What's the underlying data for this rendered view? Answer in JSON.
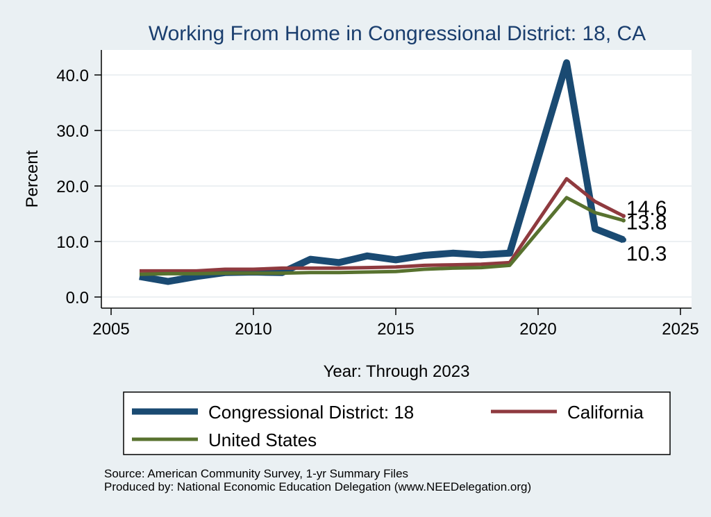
{
  "chart_data": {
    "type": "line",
    "title": "Working From Home in Congressional District: 18, CA",
    "xlabel": "Year: Through 2023",
    "ylabel": "Percent",
    "xlim": [
      2005,
      2025
    ],
    "ylim": [
      0,
      42
    ],
    "xticks": [
      "2005",
      "2010",
      "2015",
      "2020",
      "2025"
    ],
    "yticks": [
      "0.0",
      "10.0",
      "20.0",
      "30.0",
      "40.0"
    ],
    "grid": true,
    "legend_position": "bottom",
    "x": [
      2006,
      2007,
      2008,
      2009,
      2010,
      2011,
      2012,
      2013,
      2014,
      2015,
      2016,
      2017,
      2018,
      2019,
      2021,
      2022,
      2023
    ],
    "series": [
      {
        "name": "Congressional District: 18",
        "color": "#1a4a72",
        "values": [
          3.7,
          2.8,
          3.7,
          4.4,
          4.5,
          4.4,
          6.8,
          6.2,
          7.4,
          6.7,
          7.5,
          7.9,
          7.6,
          7.9,
          42.2,
          12.3,
          10.3
        ]
      },
      {
        "name": "California",
        "color": "#8f3a3f",
        "values": [
          4.7,
          4.7,
          4.7,
          5.0,
          5.0,
          5.2,
          5.2,
          5.2,
          5.3,
          5.4,
          5.7,
          5.8,
          5.9,
          6.2,
          21.3,
          17.2,
          14.6
        ]
      },
      {
        "name": "United States",
        "color": "#58722f",
        "values": [
          4.1,
          4.2,
          4.2,
          4.3,
          4.3,
          4.3,
          4.4,
          4.4,
          4.5,
          4.6,
          5.0,
          5.2,
          5.3,
          5.7,
          17.9,
          15.2,
          13.8
        ]
      }
    ],
    "end_labels": [
      "14.6",
      "13.8",
      "10.3"
    ]
  },
  "source_line": "Source: American Community Survey, 1-yr Summary Files",
  "produced_line": "Produced by: National Economic Education Delegation (www.NEEDelegation.org)"
}
